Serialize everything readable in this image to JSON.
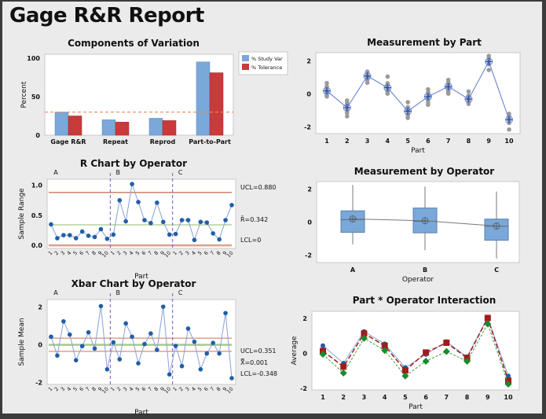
{
  "report_title": "Gage R&R Report",
  "chart_data": [
    {
      "id": "components",
      "type": "bar",
      "title": "Components of Variation",
      "xlabel": "",
      "ylabel": "Percent",
      "ylim": [
        0,
        105
      ],
      "yticks": [
        0,
        50,
        100
      ],
      "categories": [
        "Gage R&R",
        "Repeat",
        "Reprod",
        "Part-to-Part"
      ],
      "series": [
        {
          "name": "% Study Var",
          "color": "#7aa8d8",
          "values": [
            30,
            20,
            22,
            95
          ]
        },
        {
          "name": "% Tolerance",
          "color": "#c93a3a",
          "values": [
            25,
            17,
            19,
            81
          ]
        }
      ],
      "reference_line": {
        "value": 30,
        "color": "#f08a5a",
        "style": "dashed"
      },
      "legend": "right"
    },
    {
      "id": "rchart",
      "type": "line",
      "title": "R Chart by Operator",
      "xlabel": "Part",
      "ylabel": "Sample Range",
      "ylim": [
        -0.05,
        1.1
      ],
      "yticks": [
        "0.0",
        "0.5",
        "1.0"
      ],
      "groups": [
        "A",
        "B",
        "C"
      ],
      "x_tick_labels": [
        "1",
        "2",
        "3",
        "4",
        "5",
        "6",
        "7",
        "8",
        "9",
        "10"
      ],
      "series": [
        {
          "name": "A",
          "values": [
            0.35,
            0.12,
            0.17,
            0.17,
            0.12,
            0.23,
            0.16,
            0.14,
            0.27,
            0.11
          ]
        },
        {
          "name": "B",
          "values": [
            0.18,
            0.75,
            0.4,
            1.02,
            0.72,
            0.42,
            0.37,
            0.71,
            0.39,
            0.18
          ]
        },
        {
          "name": "C",
          "values": [
            0.19,
            0.42,
            0.42,
            0.09,
            0.39,
            0.38,
            0.2,
            0.1,
            0.42,
            0.67
          ]
        }
      ],
      "control_lines": [
        {
          "name": "UCL",
          "value": 0.88,
          "label": "UCL=0.880",
          "color": "#c9775a"
        },
        {
          "name": "Center",
          "value": 0.342,
          "label": "R̄=0.342",
          "color": "#a8c98a"
        },
        {
          "name": "LCL",
          "value": 0,
          "label": "LCL=0",
          "color": "#d9a090"
        }
      ]
    },
    {
      "id": "xbarchart",
      "type": "line",
      "title": "Xbar Chart by Operator",
      "xlabel": "Part",
      "ylabel": "Sample Mean",
      "ylim": [
        -2.1,
        2.4
      ],
      "yticks": [
        "-2",
        "0",
        "2"
      ],
      "groups": [
        "A",
        "B",
        "C"
      ],
      "x_tick_labels": [
        "1",
        "2",
        "3",
        "4",
        "5",
        "6",
        "7",
        "8",
        "9",
        "10"
      ],
      "series": [
        {
          "name": "A",
          "values": [
            0.43,
            -0.57,
            1.24,
            0.54,
            -0.82,
            -0.07,
            0.66,
            -0.2,
            2.05,
            -1.3
          ]
        },
        {
          "name": "B",
          "values": [
            0.13,
            -0.77,
            1.13,
            0.43,
            -0.98,
            0.04,
            0.6,
            -0.27,
            2.02,
            -1.57
          ]
        },
        {
          "name": "C",
          "values": [
            -0.06,
            -1.13,
            0.86,
            0.16,
            -1.3,
            -0.46,
            0.1,
            -0.46,
            1.68,
            -1.77
          ]
        }
      ],
      "control_lines": [
        {
          "name": "UCL",
          "value": 0.351,
          "label": "UCL=0.351",
          "color": "#d99a80"
        },
        {
          "name": "Center",
          "value": 0.001,
          "label": "X̿=0.001",
          "color": "#a8c98a"
        },
        {
          "name": "LCL",
          "value": -0.348,
          "label": "LCL=-0.348",
          "color": "#d99a80"
        }
      ]
    },
    {
      "id": "measurement_by_part",
      "type": "scatter",
      "title": "Measurement by Part",
      "xlabel": "Part",
      "ylabel": "",
      "ylim": [
        -2.4,
        2.5
      ],
      "yticks": [
        "-2",
        "0",
        "2"
      ],
      "categories": [
        "1",
        "2",
        "3",
        "4",
        "5",
        "6",
        "7",
        "8",
        "9",
        "10"
      ],
      "means": [
        0.19,
        -0.83,
        1.09,
        0.38,
        -1.04,
        -0.16,
        0.45,
        -0.31,
        1.96,
        -1.55
      ],
      "points": [
        [
          0.66,
          0.45,
          0.3,
          0.18,
          0.08,
          -0.05,
          -0.15
        ],
        [
          -0.4,
          -0.55,
          -0.7,
          -0.85,
          -1.0,
          -1.15,
          -1.35
        ],
        [
          1.35,
          1.25,
          1.15,
          1.05,
          0.95,
          0.85,
          0.68
        ],
        [
          1.05,
          0.65,
          0.5,
          0.35,
          0.22,
          0.1,
          0.02
        ],
        [
          -0.5,
          -0.8,
          -0.95,
          -1.05,
          -1.15,
          -1.3,
          -1.45
        ],
        [
          0.28,
          0.1,
          -0.05,
          -0.2,
          -0.35,
          -0.5,
          -0.65
        ],
        [
          0.85,
          0.7,
          0.55,
          0.42,
          0.3,
          0.15,
          0.02
        ],
        [
          0.15,
          -0.1,
          -0.25,
          -0.35,
          -0.45,
          -0.6
        ],
        [
          2.3,
          2.15,
          2.05,
          1.95,
          1.8,
          1.45
        ],
        [
          -1.2,
          -1.35,
          -1.5,
          -1.6,
          -1.75,
          -2.15
        ]
      ]
    },
    {
      "id": "measurement_by_operator",
      "type": "box",
      "title": "Measurement by Operator",
      "xlabel": "Operator",
      "ylabel": "",
      "ylim": [
        -2.45,
        2.45
      ],
      "yticks": [
        "-2",
        "0",
        "2"
      ],
      "categories": [
        "A",
        "B",
        "C"
      ],
      "boxes": [
        {
          "min": -1.35,
          "q1": -0.62,
          "median": 0.15,
          "q3": 0.68,
          "max": 2.25,
          "mean": 0.19
        },
        {
          "min": -1.7,
          "q1": -0.65,
          "median": 0.05,
          "q3": 0.85,
          "max": 2.15,
          "mean": 0.08
        },
        {
          "min": -2.2,
          "q1": -1.1,
          "median": -0.25,
          "q3": 0.18,
          "max": 1.85,
          "mean": -0.24
        }
      ]
    },
    {
      "id": "interaction",
      "type": "line",
      "title": "Part * Operator Interaction",
      "xlabel": "Part",
      "ylabel": "Average",
      "ylim": [
        -2.1,
        2.4
      ],
      "yticks": [
        "-2",
        "0",
        "2"
      ],
      "categories": [
        "1",
        "2",
        "3",
        "4",
        "5",
        "6",
        "7",
        "8",
        "9",
        "10"
      ],
      "series": [
        {
          "name": "A",
          "color": "#1f5ea8",
          "line": "#8aa8e0",
          "marker": "circle",
          "values": [
            0.43,
            -0.57,
            1.24,
            0.54,
            -0.82,
            -0.07,
            0.66,
            -0.2,
            2.05,
            -1.3
          ]
        },
        {
          "name": "B",
          "color": "#a01c1c",
          "line": "#a01c1c",
          "marker": "square",
          "values": [
            0.13,
            -0.77,
            1.13,
            0.43,
            -0.98,
            0.04,
            0.6,
            -0.27,
            2.02,
            -1.57
          ]
        },
        {
          "name": "C",
          "color": "#1b8a2a",
          "line": "#3aa040",
          "marker": "diamond",
          "values": [
            -0.06,
            -1.13,
            0.86,
            0.16,
            -1.3,
            -0.46,
            0.1,
            -0.46,
            1.68,
            -1.77
          ]
        }
      ]
    }
  ]
}
